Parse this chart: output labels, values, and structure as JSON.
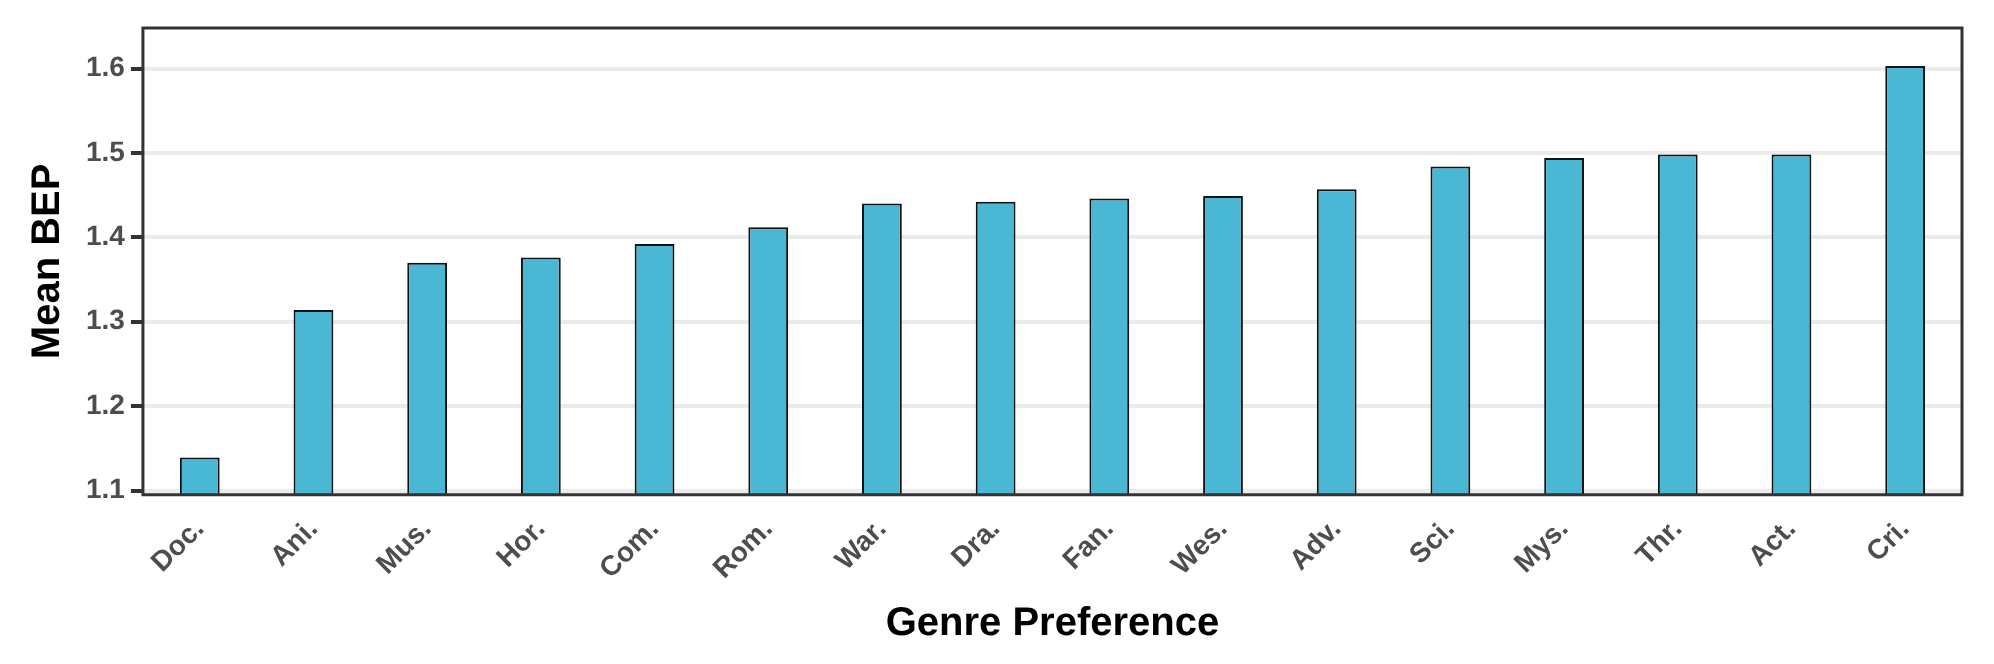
{
  "chart_data": {
    "type": "bar",
    "xlabel": "Genre Preference",
    "ylabel": "Mean BEP",
    "categories": [
      "Doc.",
      "Ani.",
      "Mus.",
      "Hor.",
      "Com.",
      "Rom.",
      "War.",
      "Dra.",
      "Fan.",
      "Wes.",
      "Adv.",
      "Sci.",
      "Mys.",
      "Thr.",
      "Act.",
      "Cri."
    ],
    "values": [
      1.139,
      1.314,
      1.37,
      1.376,
      1.392,
      1.412,
      1.44,
      1.442,
      1.446,
      1.449,
      1.457,
      1.484,
      1.494,
      1.498,
      1.498,
      1.603
    ],
    "color": "#4ab8d4",
    "ylim": [
      1.095,
      1.648
    ],
    "yticks": [
      1.1,
      1.2,
      1.3,
      1.4,
      1.5,
      1.6
    ],
    "grid": "y",
    "legend": false
  }
}
